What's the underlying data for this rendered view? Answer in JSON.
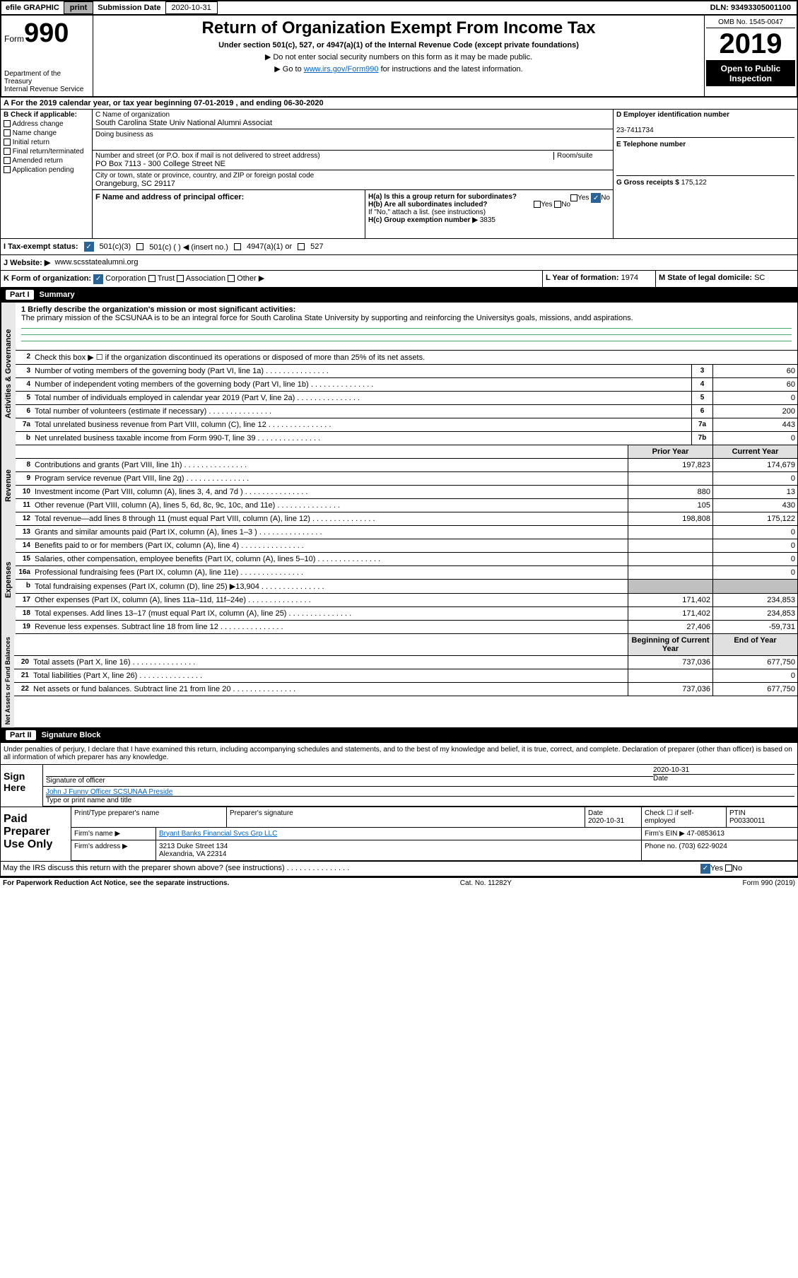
{
  "topbar": {
    "efile": "efile GRAPHIC",
    "print": "print",
    "subm_label": "Submission Date",
    "subm_date": "2020-10-31",
    "dln": "DLN: 93493305001100"
  },
  "header": {
    "form": "Form",
    "num": "990",
    "dept": "Department of the Treasury\nInternal Revenue Service",
    "title": "Return of Organization Exempt From Income Tax",
    "subtitle": "Under section 501(c), 527, or 4947(a)(1) of the Internal Revenue Code (except private foundations)",
    "line1": "▶ Do not enter social security numbers on this form as it may be made public.",
    "line2_pre": "▶ Go to ",
    "line2_link": "www.irs.gov/Form990",
    "line2_post": " for instructions and the latest information.",
    "omb": "OMB No. 1545-0047",
    "year": "2019",
    "open": "Open to Public Inspection"
  },
  "rowA": "A For the 2019 calendar year, or tax year beginning 07-01-2019   , and ending 06-30-2020",
  "B": {
    "header": "B Check if applicable:",
    "items": [
      "Address change",
      "Name change",
      "Initial return",
      "Final return/terminated",
      "Amended return",
      "Application pending"
    ]
  },
  "C": {
    "name_label": "C Name of organization",
    "name": "South Carolina State Univ National Alumni Associat",
    "dba_label": "Doing business as",
    "addr_label": "Number and street (or P.O. box if mail is not delivered to street address)",
    "room_label": "Room/suite",
    "addr": "PO Box 7113 - 300 College Street NE",
    "city_label": "City or town, state or province, country, and ZIP or foreign postal code",
    "city": "Orangeburg, SC  29117",
    "F": "F  Name and address of principal officer:"
  },
  "D": {
    "ein_label": "D Employer identification number",
    "ein": "23-7411734",
    "tel_label": "E Telephone number",
    "gross_label": "G Gross receipts $",
    "gross": "175,122"
  },
  "H": {
    "a": "H(a)  Is this a group return for subordinates?",
    "a_ans": "No",
    "b": "H(b)  Are all subordinates included?",
    "b_note": "If \"No,\" attach a list. (see instructions)",
    "c_label": "H(c)  Group exemption number ▶",
    "c_val": "3835"
  },
  "I": {
    "label": "I    Tax-exempt status:",
    "opts": [
      "501(c)(3)",
      "501(c) (  ) ◀ (insert no.)",
      "4947(a)(1) or",
      "527"
    ]
  },
  "J": {
    "label": "J   Website: ▶",
    "val": "www.scsstatealumni.org"
  },
  "K": {
    "label": "K Form of organization:",
    "opts": [
      "Corporation",
      "Trust",
      "Association",
      "Other ▶"
    ]
  },
  "L": {
    "label": "L Year of formation:",
    "val": "1974"
  },
  "M": {
    "label": "M State of legal domicile:",
    "val": "SC"
  },
  "part1": {
    "label": "Part I",
    "title": "Summary",
    "mission_label": "1  Briefly describe the organization's mission or most significant activities:",
    "mission": "The primary mission of the SCSUNAA is to be an integral force for South Carolina State University by supporting and reinforcing the Universitys goals, missions, andd aspirations.",
    "line2": "Check this box ▶ ☐  if the organization discontinued its operations or disposed of more than 25% of its net assets.",
    "sections": {
      "governance": "Activities & Governance",
      "revenue": "Revenue",
      "expenses": "Expenses",
      "netassets": "Net Assets or Fund Balances"
    },
    "gov_rows": [
      {
        "n": "3",
        "d": "Number of voting members of the governing body (Part VI, line 1a)",
        "b": "3",
        "v": "60"
      },
      {
        "n": "4",
        "d": "Number of independent voting members of the governing body (Part VI, line 1b)",
        "b": "4",
        "v": "60"
      },
      {
        "n": "5",
        "d": "Total number of individuals employed in calendar year 2019 (Part V, line 2a)",
        "b": "5",
        "v": "0"
      },
      {
        "n": "6",
        "d": "Total number of volunteers (estimate if necessary)",
        "b": "6",
        "v": "200"
      },
      {
        "n": "7a",
        "d": "Total unrelated business revenue from Part VIII, column (C), line 12",
        "b": "7a",
        "v": "443"
      },
      {
        "n": "b",
        "d": "Net unrelated business taxable income from Form 990-T, line 39",
        "b": "7b",
        "v": "0"
      }
    ],
    "prior_header": "Prior Year",
    "current_header": "Current Year",
    "rev_rows": [
      {
        "n": "8",
        "d": "Contributions and grants (Part VIII, line 1h)",
        "p": "197,823",
        "c": "174,679"
      },
      {
        "n": "9",
        "d": "Program service revenue (Part VIII, line 2g)",
        "p": "",
        "c": "0"
      },
      {
        "n": "10",
        "d": "Investment income (Part VIII, column (A), lines 3, 4, and 7d )",
        "p": "880",
        "c": "13"
      },
      {
        "n": "11",
        "d": "Other revenue (Part VIII, column (A), lines 5, 6d, 8c, 9c, 10c, and 11e)",
        "p": "105",
        "c": "430"
      },
      {
        "n": "12",
        "d": "Total revenue—add lines 8 through 11 (must equal Part VIII, column (A), line 12)",
        "p": "198,808",
        "c": "175,122"
      }
    ],
    "exp_rows": [
      {
        "n": "13",
        "d": "Grants and similar amounts paid (Part IX, column (A), lines 1–3 )",
        "p": "",
        "c": "0"
      },
      {
        "n": "14",
        "d": "Benefits paid to or for members (Part IX, column (A), line 4)",
        "p": "",
        "c": "0"
      },
      {
        "n": "15",
        "d": "Salaries, other compensation, employee benefits (Part IX, column (A), lines 5–10)",
        "p": "",
        "c": "0"
      },
      {
        "n": "16a",
        "d": "Professional fundraising fees (Part IX, column (A), line 11e)",
        "p": "",
        "c": "0"
      },
      {
        "n": "b",
        "d": "Total fundraising expenses (Part IX, column (D), line 25) ▶13,904",
        "p": "GREY",
        "c": "GREY"
      },
      {
        "n": "17",
        "d": "Other expenses (Part IX, column (A), lines 11a–11d, 11f–24e)",
        "p": "171,402",
        "c": "234,853"
      },
      {
        "n": "18",
        "d": "Total expenses. Add lines 13–17 (must equal Part IX, column (A), line 25)",
        "p": "171,402",
        "c": "234,853"
      },
      {
        "n": "19",
        "d": "Revenue less expenses. Subtract line 18 from line 12",
        "p": "27,406",
        "c": "-59,731"
      }
    ],
    "net_header_p": "Beginning of Current Year",
    "net_header_c": "End of Year",
    "net_rows": [
      {
        "n": "20",
        "d": "Total assets (Part X, line 16)",
        "p": "737,036",
        "c": "677,750"
      },
      {
        "n": "21",
        "d": "Total liabilities (Part X, line 26)",
        "p": "",
        "c": "0"
      },
      {
        "n": "22",
        "d": "Net assets or fund balances. Subtract line 21 from line 20",
        "p": "737,036",
        "c": "677,750"
      }
    ]
  },
  "part2": {
    "label": "Part II",
    "title": "Signature Block",
    "decl": "Under penalties of perjury, I declare that I have examined this return, including accompanying schedules and statements, and to the best of my knowledge and belief, it is true, correct, and complete. Declaration of preparer (other than officer) is based on all information of which preparer has any knowledge.",
    "sign_here": "Sign Here",
    "sig_officer": "Signature of officer",
    "sig_date_label": "Date",
    "sig_date": "2020-10-31",
    "officer_name": "John J Funny Officer  SCSUNAA Preside",
    "type_name": "Type or print name and title",
    "paid": "Paid Preparer Use Only",
    "prep_name_label": "Print/Type preparer's name",
    "prep_sig_label": "Preparer's signature",
    "prep_date_label": "Date",
    "prep_date": "2020-10-31",
    "check_self": "Check ☐ if self-employed",
    "ptin_label": "PTIN",
    "ptin": "P00330011",
    "firm_name_label": "Firm's name    ▶",
    "firm_name": "Bryant Banks Financial Svcs Grp LLC",
    "firm_ein_label": "Firm's EIN ▶",
    "firm_ein": "47-0853613",
    "firm_addr_label": "Firm's address ▶",
    "firm_addr": "3213 Duke Street 134",
    "firm_city": "Alexandria, VA  22314",
    "phone_label": "Phone no.",
    "phone": "(703) 622-9024",
    "discuss": "May the IRS discuss this return with the preparer shown above? (see instructions)",
    "discuss_yes": "Yes",
    "discuss_no": "No"
  },
  "footer": {
    "paperwork": "For Paperwork Reduction Act Notice, see the separate instructions.",
    "cat": "Cat. No. 11282Y",
    "form": "Form 990 (2019)"
  }
}
